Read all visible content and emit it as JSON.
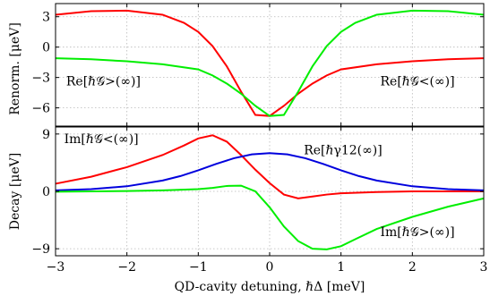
{
  "chart_data": {
    "type": "line",
    "xlabel": "QD-cavity detuning, ℏΔ [meV]",
    "xlim": [
      -3,
      3
    ],
    "xticks": [
      -3,
      -2,
      -1,
      0,
      1,
      2,
      3
    ],
    "xtick_labels": [
      "−3",
      "−2",
      "−1",
      "0",
      "1",
      "2",
      "3"
    ],
    "grid": true,
    "panels": [
      {
        "id": "renorm",
        "ylabel": "Renorm. [μeV]",
        "ylim": [
          -7.8,
          4.3
        ],
        "yticks": [
          3,
          0,
          -3,
          -6
        ],
        "ytick_labels": [
          "3",
          "0",
          "−3",
          "−6"
        ],
        "series": [
          {
            "name": "Re[ℏ𝒢>(∞)]",
            "color": "#ff0000",
            "x": [
              -3,
              -2.5,
              -2,
              -1.5,
              -1.2,
              -1,
              -0.8,
              -0.6,
              -0.4,
              -0.2,
              0,
              0.2,
              0.4,
              0.6,
              0.8,
              1,
              1.5,
              2,
              2.5,
              3
            ],
            "y": [
              3.2,
              3.55,
              3.6,
              3.2,
              2.4,
              1.5,
              0.1,
              -1.9,
              -4.4,
              -6.7,
              -6.8,
              -5.8,
              -4.6,
              -3.6,
              -2.8,
              -2.2,
              -1.7,
              -1.4,
              -1.2,
              -1.1
            ]
          },
          {
            "name": "Re[ℏ𝒢<(∞)]",
            "color": "#00ee00",
            "x": [
              -3,
              -2.5,
              -2,
              -1.5,
              -1,
              -0.8,
              -0.6,
              -0.4,
              -0.2,
              0,
              0.2,
              0.4,
              0.6,
              0.8,
              1,
              1.2,
              1.5,
              2,
              2.5,
              3
            ],
            "y": [
              -1.1,
              -1.2,
              -1.4,
              -1.7,
              -2.2,
              -2.8,
              -3.6,
              -4.6,
              -5.8,
              -6.8,
              -6.7,
              -4.4,
              -1.9,
              0.1,
              1.5,
              2.4,
              3.2,
              3.6,
              3.55,
              3.2
            ]
          }
        ],
        "annotations": [
          {
            "text": "Re[ℏ𝒢>(∞)]",
            "x": -2.85,
            "y": -3.8
          },
          {
            "text": "Re[ℏ𝒢<(∞)]",
            "x": 1.55,
            "y": -3.8
          }
        ]
      },
      {
        "id": "decay",
        "ylabel": "Decay [μeV]",
        "ylim": [
          -10.1,
          10.1
        ],
        "yticks": [
          9,
          0,
          -9
        ],
        "ytick_labels": [
          "9",
          "0",
          "−9"
        ],
        "series": [
          {
            "name": "Im[ℏ𝒢<(∞)]",
            "color": "#ff0000",
            "x": [
              -3,
              -2.5,
              -2,
              -1.5,
              -1.2,
              -1,
              -0.8,
              -0.6,
              -0.4,
              -0.2,
              0,
              0.2,
              0.4,
              0.6,
              0.8,
              1,
              1.5,
              2,
              2.5,
              3
            ],
            "y": [
              1.2,
              2.3,
              3.8,
              5.7,
              7.2,
              8.3,
              8.8,
              7.8,
              5.7,
              3.4,
              1.3,
              -0.5,
              -1.1,
              -0.8,
              -0.5,
              -0.3,
              -0.1,
              0,
              0,
              0
            ]
          },
          {
            "name": "Re[ℏγ12(∞)]",
            "color": "#0000dd",
            "x": [
              -3,
              -2.5,
              -2,
              -1.5,
              -1.25,
              -1,
              -0.75,
              -0.5,
              -0.25,
              0,
              0.25,
              0.5,
              0.75,
              1,
              1.25,
              1.5,
              2,
              2.5,
              3
            ],
            "y": [
              0.15,
              0.35,
              0.8,
              1.7,
              2.4,
              3.3,
              4.3,
              5.2,
              5.8,
              6.0,
              5.8,
              5.2,
              4.3,
              3.3,
              2.4,
              1.7,
              0.8,
              0.35,
              0.15
            ]
          },
          {
            "name": "Im[ℏ𝒢>(∞)]",
            "color": "#00ee00",
            "x": [
              -3,
              -2.5,
              -2,
              -1.5,
              -1,
              -0.8,
              -0.6,
              -0.4,
              -0.2,
              0,
              0.2,
              0.4,
              0.6,
              0.8,
              1,
              1.2,
              1.5,
              2,
              2.5,
              3
            ],
            "y": [
              -0.05,
              0,
              0.05,
              0.15,
              0.35,
              0.55,
              0.85,
              0.9,
              0,
              -2.5,
              -5.5,
              -7.8,
              -9.0,
              -9.1,
              -8.6,
              -7.5,
              -5.9,
              -4.0,
              -2.4,
              -1.1
            ]
          }
        ],
        "annotations": [
          {
            "text": "Im[ℏ𝒢<(∞)]",
            "x": -2.88,
            "y": 7.6
          },
          {
            "text": "Re[ℏγ12(∞)]",
            "x": 0.48,
            "y": 5.8
          },
          {
            "text": "Im[ℏ𝒢>(∞)]",
            "x": 1.55,
            "y": -7.0
          }
        ]
      }
    ]
  }
}
